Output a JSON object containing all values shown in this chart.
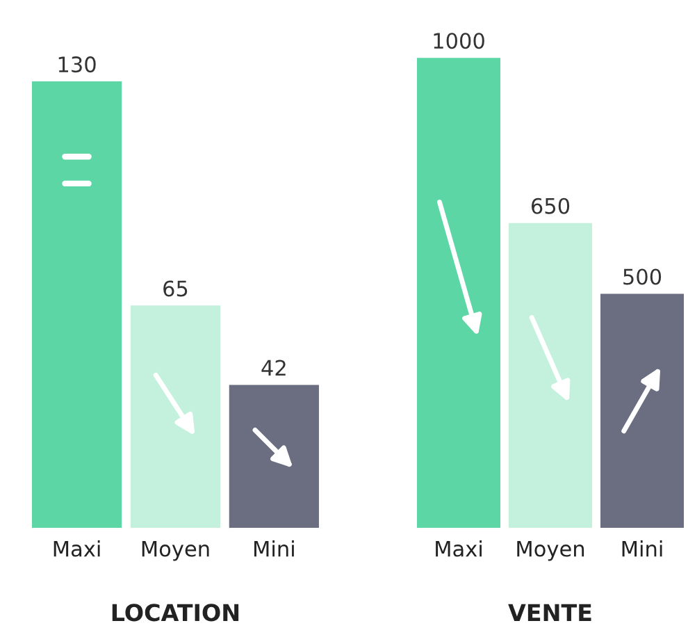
{
  "chart_data": [
    {
      "type": "bar",
      "xlabel": "LOCATION",
      "categories": [
        "Maxi",
        "Moyen",
        "Mini"
      ],
      "values": [
        130,
        65,
        42
      ],
      "colors": [
        "#5dd6a6",
        "#c4f1dd",
        "#6b6d80"
      ],
      "data_labels": true,
      "tick_labels": "x"
    },
    {
      "type": "bar",
      "xlabel": "VENTE",
      "categories": [
        "Maxi",
        "Moyen",
        "Mini"
      ],
      "values": [
        1000,
        650,
        500
      ],
      "colors": [
        "#5dd6a6",
        "#c4f1dd",
        "#6b6d80"
      ],
      "data_labels": true,
      "tick_labels": "x"
    }
  ]
}
